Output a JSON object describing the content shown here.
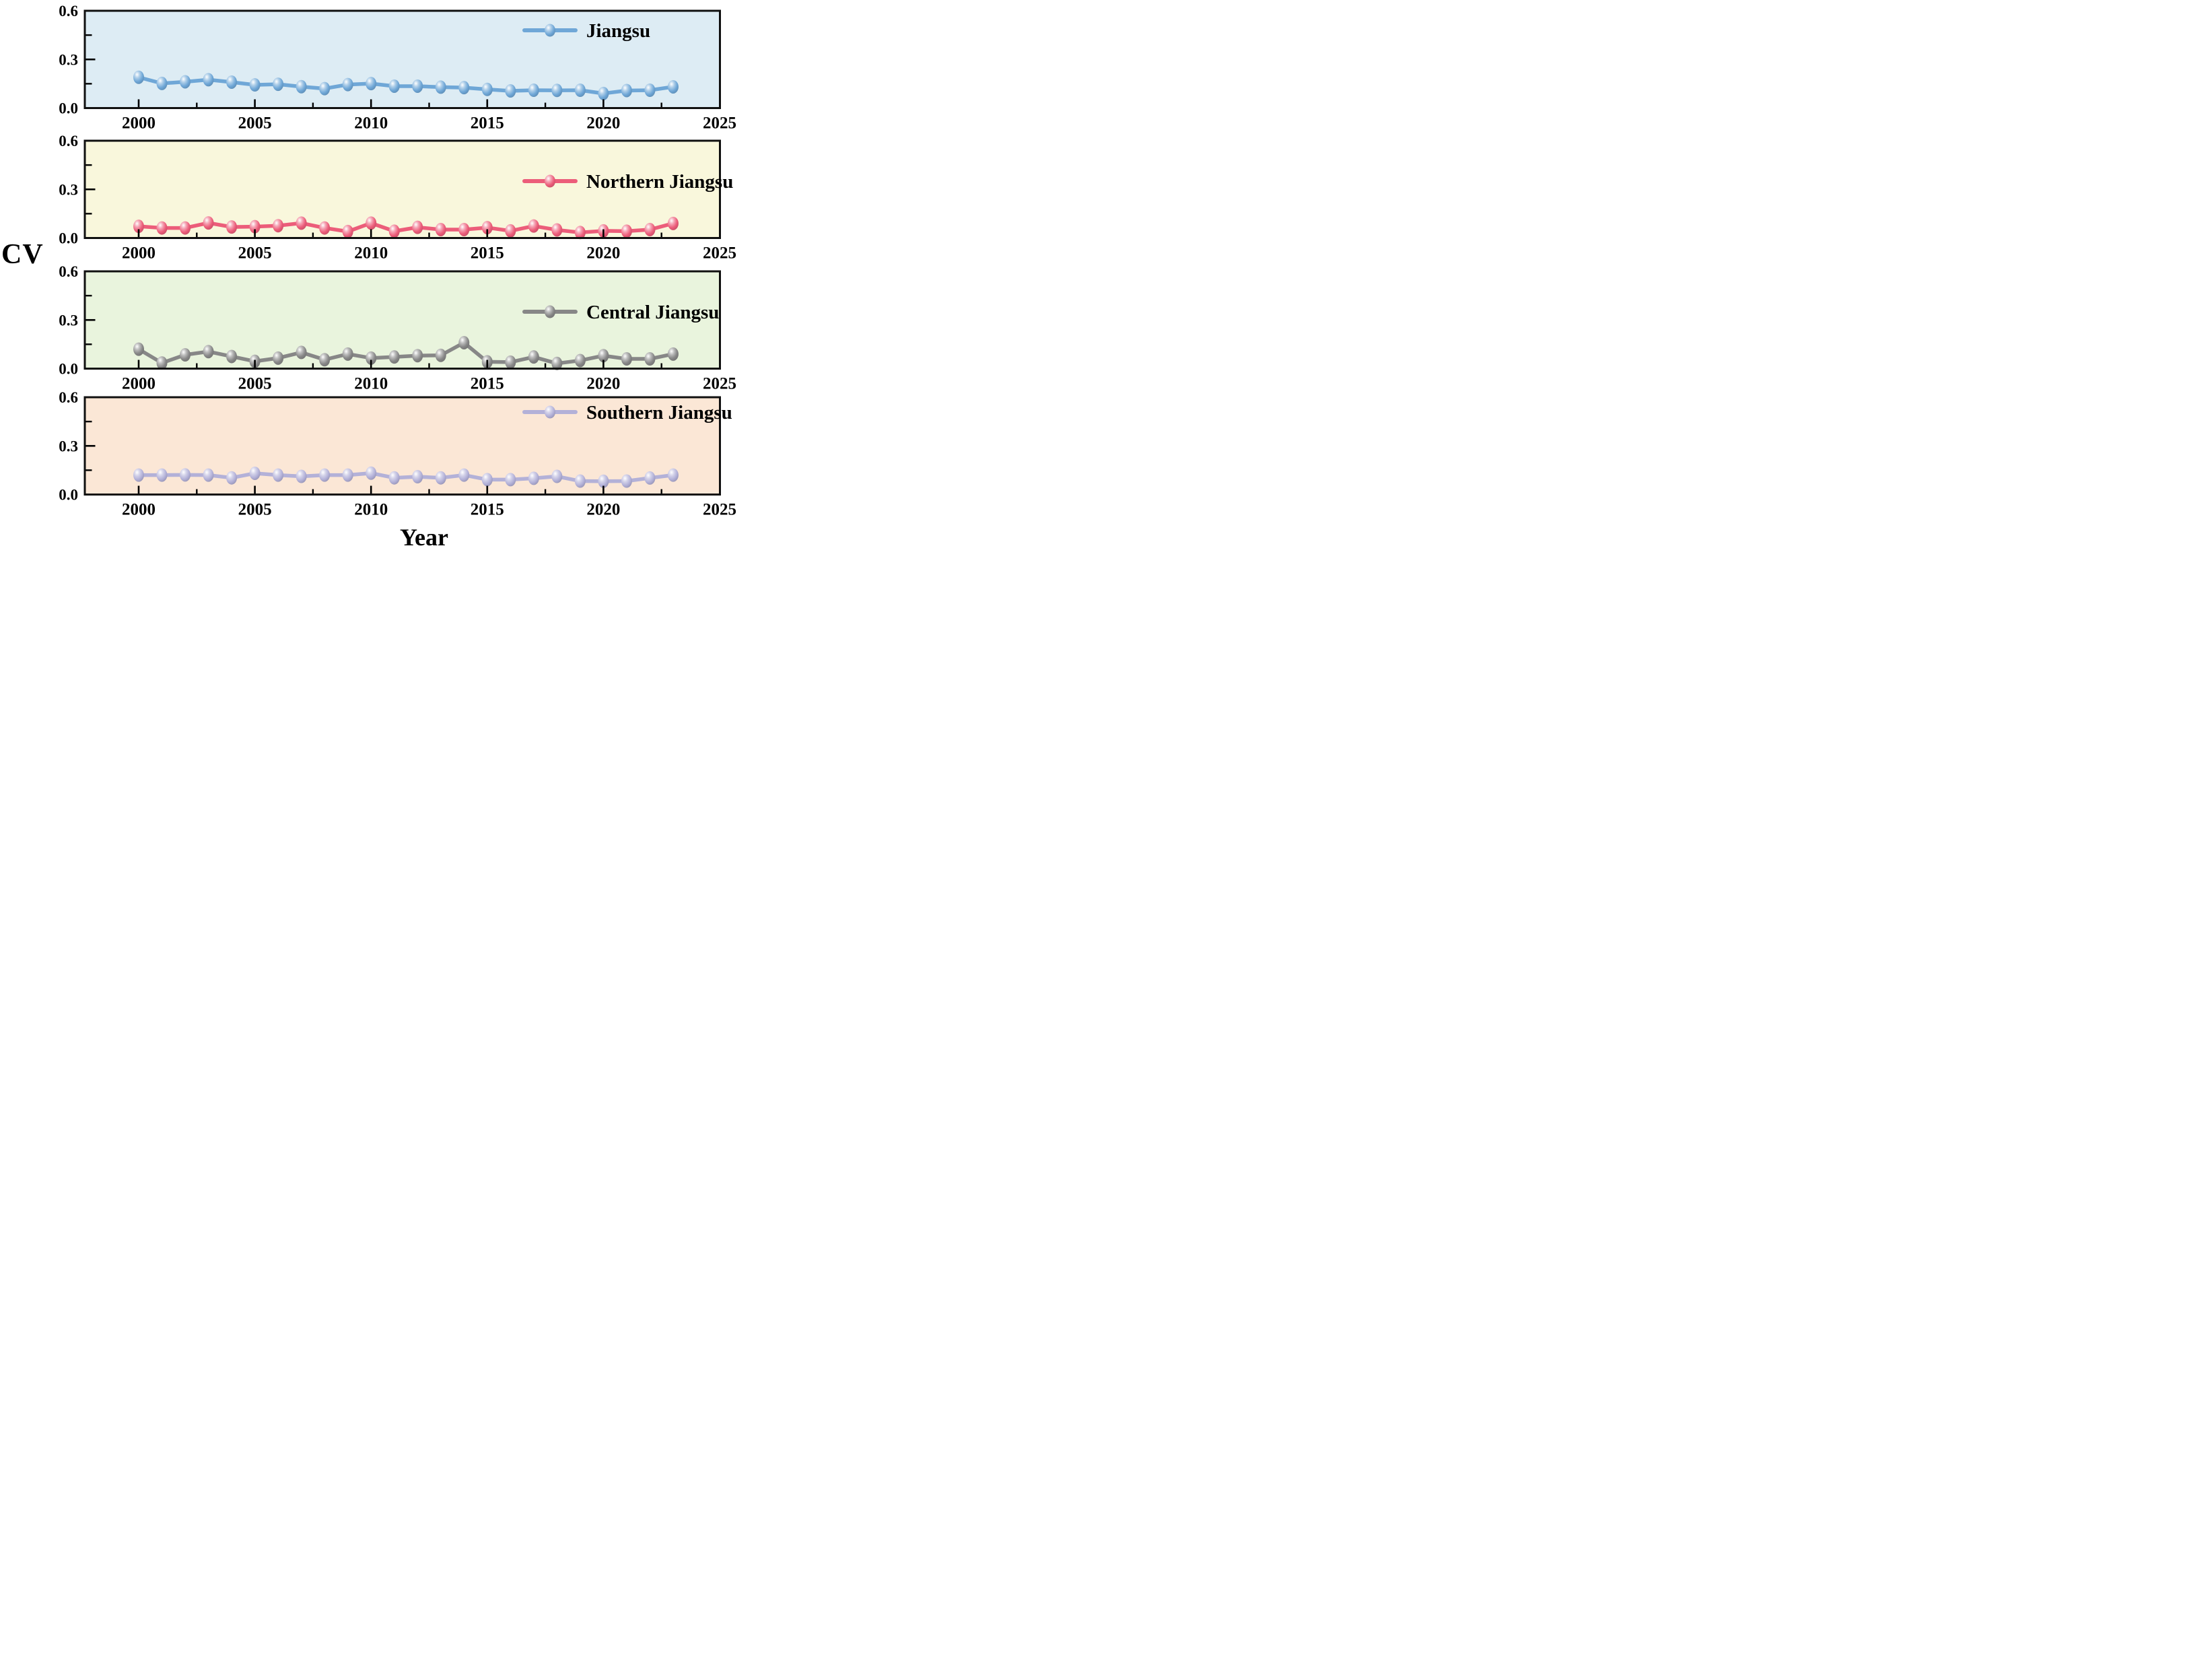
{
  "figure": {
    "ylabel": "CV",
    "xlabel": "Year"
  },
  "axes": {
    "ylim": [
      0,
      0.6
    ],
    "ytick_labels": [
      "0.0",
      "0.3",
      "0.6"
    ],
    "ytick_values": [
      0,
      0.3,
      0.6
    ],
    "yminor_values": [
      0.15,
      0.45
    ],
    "xlim": [
      1997.7,
      2025
    ],
    "xtick_values": [
      2000,
      2005,
      2010,
      2015,
      2020,
      2025
    ],
    "xminor_values": [
      2002.5,
      2007.5,
      2012.5,
      2017.5,
      2022.5
    ],
    "grid": false,
    "legend_position": "top-right-inside"
  },
  "years": [
    2000,
    2001,
    2002,
    2003,
    2004,
    2005,
    2006,
    2007,
    2008,
    2009,
    2010,
    2011,
    2012,
    2013,
    2014,
    2015,
    2016,
    2017,
    2018,
    2019,
    2020,
    2021,
    2022,
    2023
  ],
  "chart_data": [
    {
      "type": "line",
      "name": "Jiangsu",
      "color": "#6fa7d7",
      "panel_bg": "#ddecf4",
      "values": [
        0.19,
        0.152,
        0.162,
        0.175,
        0.16,
        0.143,
        0.147,
        0.132,
        0.12,
        0.145,
        0.151,
        0.135,
        0.135,
        0.129,
        0.126,
        0.115,
        0.106,
        0.11,
        0.109,
        0.11,
        0.09,
        0.108,
        0.11,
        0.131
      ]
    },
    {
      "type": "line",
      "name": "Northern Jiangsu",
      "color": "#ec5d7a",
      "panel_bg": "#f9f7dc",
      "values": [
        0.072,
        0.062,
        0.062,
        0.093,
        0.068,
        0.07,
        0.076,
        0.092,
        0.062,
        0.04,
        0.092,
        0.042,
        0.066,
        0.052,
        0.052,
        0.064,
        0.044,
        0.074,
        0.05,
        0.034,
        0.044,
        0.042,
        0.052,
        0.09
      ]
    },
    {
      "type": "line",
      "name": "Central Jiangsu",
      "color": "#878787",
      "panel_bg": "#e9f4dd",
      "values": [
        0.12,
        0.035,
        0.085,
        0.105,
        0.075,
        0.045,
        0.065,
        0.1,
        0.055,
        0.09,
        0.065,
        0.072,
        0.08,
        0.082,
        0.16,
        0.042,
        0.04,
        0.072,
        0.032,
        0.05,
        0.08,
        0.06,
        0.06,
        0.09
      ]
    },
    {
      "type": "line",
      "name": "Southern Jiangsu",
      "color": "#b3b1d8",
      "panel_bg": "#fbe7d6",
      "values": [
        0.12,
        0.12,
        0.121,
        0.12,
        0.103,
        0.131,
        0.12,
        0.112,
        0.12,
        0.12,
        0.132,
        0.103,
        0.11,
        0.103,
        0.12,
        0.092,
        0.092,
        0.1,
        0.112,
        0.083,
        0.082,
        0.083,
        0.102,
        0.12
      ]
    }
  ]
}
